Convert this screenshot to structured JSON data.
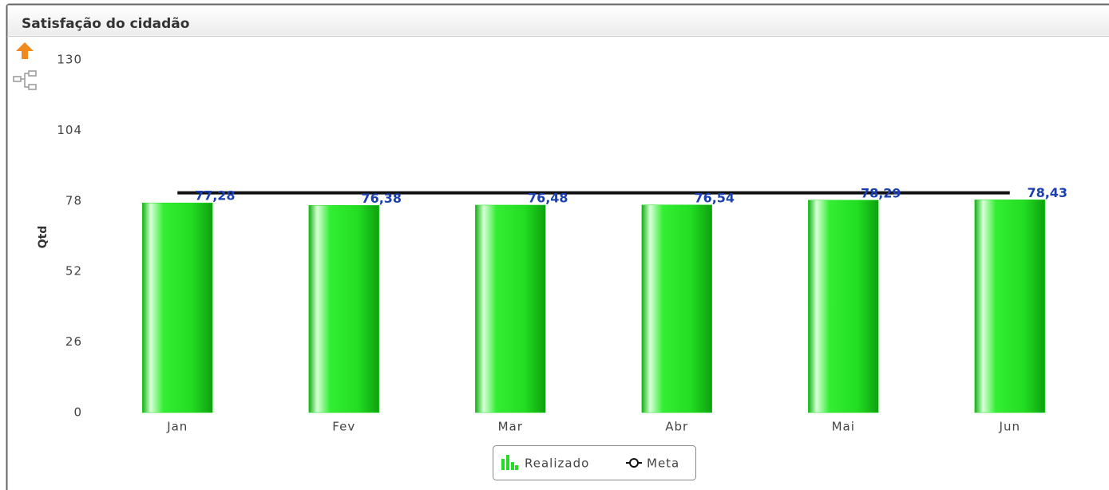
{
  "chart_data": {
    "type": "bar",
    "title": "Satisfação do cidadão",
    "y_label": "Qtd",
    "categories": [
      "Jan",
      "Fev",
      "Mar",
      "Abr",
      "Mai",
      "Jun"
    ],
    "series": [
      {
        "name": "Realizado",
        "color": "#22dd22",
        "values": [
          77.28,
          76.38,
          76.48,
          76.54,
          78.29,
          78.43
        ],
        "value_labels": [
          "77,28",
          "76,38",
          "76,48",
          "76,54",
          "78,29",
          "78,43"
        ]
      },
      {
        "name": "Meta",
        "type": "line",
        "color": "#111111",
        "values": [
          81,
          81,
          81,
          81,
          81,
          81
        ]
      }
    ],
    "ylim": [
      0,
      130
    ],
    "yticks": [
      0,
      26,
      52,
      78,
      104,
      130
    ],
    "grid": false
  }
}
